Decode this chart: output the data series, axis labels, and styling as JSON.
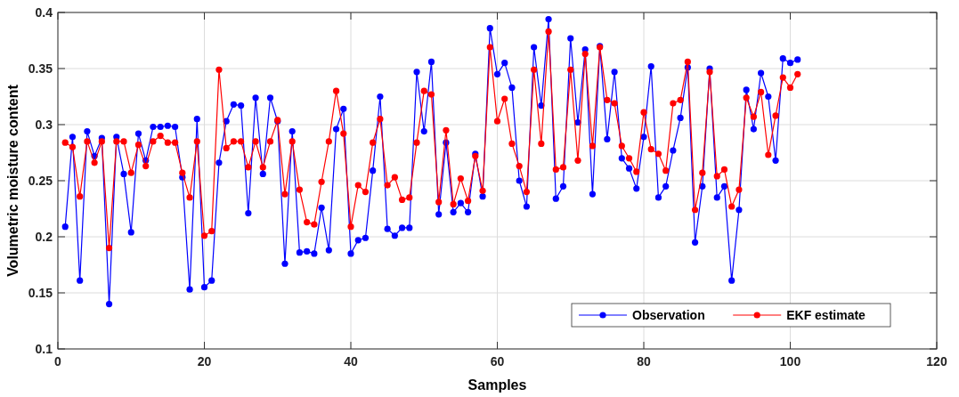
{
  "chart_data": {
    "type": "line",
    "xlabel": "Samples",
    "ylabel": "Volumetric moisture content",
    "x": [
      1,
      2,
      3,
      4,
      5,
      6,
      7,
      8,
      9,
      10,
      11,
      12,
      13,
      14,
      15,
      16,
      17,
      18,
      19,
      20,
      21,
      22,
      23,
      24,
      25,
      26,
      27,
      28,
      29,
      30,
      31,
      32,
      33,
      34,
      35,
      36,
      37,
      38,
      39,
      40,
      41,
      42,
      43,
      44,
      45,
      46,
      47,
      48,
      49,
      50,
      51,
      52,
      53,
      54,
      55,
      56,
      57,
      58,
      59,
      60,
      61,
      62,
      63,
      64,
      65,
      66,
      67,
      68,
      69,
      70,
      71,
      72,
      73,
      74,
      75,
      76,
      77,
      78,
      79,
      80,
      81,
      82,
      83,
      84,
      85,
      86,
      87,
      88,
      89,
      90,
      91,
      92,
      93,
      94,
      95,
      96,
      97,
      98,
      99,
      100,
      101
    ],
    "series": [
      {
        "name": "Observation",
        "color": "#0000ff",
        "values": [
          0.209,
          0.289,
          0.161,
          0.294,
          0.272,
          0.288,
          0.14,
          0.289,
          0.256,
          0.204,
          0.292,
          0.268,
          0.298,
          0.298,
          0.299,
          0.298,
          0.253,
          0.153,
          0.305,
          0.155,
          0.161,
          0.266,
          0.303,
          0.318,
          0.317,
          0.221,
          0.324,
          0.256,
          0.324,
          0.303,
          0.176,
          0.294,
          0.186,
          0.187,
          0.185,
          0.226,
          0.188,
          0.296,
          0.314,
          0.185,
          0.197,
          0.199,
          0.259,
          0.325,
          0.207,
          0.201,
          0.208,
          0.208,
          0.347,
          0.294,
          0.356,
          0.22,
          0.284,
          0.222,
          0.23,
          0.222,
          0.274,
          0.236,
          0.386,
          0.345,
          0.355,
          0.333,
          0.25,
          0.227,
          0.369,
          0.317,
          0.394,
          0.234,
          0.245,
          0.377,
          0.302,
          0.367,
          0.238,
          0.37,
          0.287,
          0.347,
          0.27,
          0.261,
          0.243,
          0.289,
          0.352,
          0.235,
          0.245,
          0.277,
          0.306,
          0.351,
          0.195,
          0.245,
          0.35,
          0.235,
          0.245,
          0.161,
          0.224,
          0.331,
          0.296,
          0.346,
          0.325,
          0.268,
          0.359,
          0.355,
          0.358
        ]
      },
      {
        "name": "EKF estimate",
        "color": "#ff0000",
        "values": [
          0.284,
          0.28,
          0.236,
          0.285,
          0.266,
          0.285,
          0.19,
          0.285,
          0.285,
          0.257,
          0.282,
          0.263,
          0.285,
          0.29,
          0.284,
          0.284,
          0.257,
          0.235,
          0.285,
          0.201,
          0.205,
          0.349,
          0.279,
          0.285,
          0.285,
          0.262,
          0.285,
          0.262,
          0.285,
          0.304,
          0.238,
          0.285,
          0.242,
          0.213,
          0.211,
          0.249,
          0.285,
          0.33,
          0.292,
          0.209,
          0.246,
          0.24,
          0.284,
          0.305,
          0.246,
          0.253,
          0.233,
          0.235,
          0.284,
          0.33,
          0.327,
          0.231,
          0.295,
          0.229,
          0.252,
          0.232,
          0.272,
          0.241,
          0.369,
          0.303,
          0.323,
          0.283,
          0.263,
          0.24,
          0.349,
          0.283,
          0.383,
          0.26,
          0.262,
          0.349,
          0.268,
          0.363,
          0.281,
          0.369,
          0.322,
          0.319,
          0.281,
          0.27,
          0.258,
          0.311,
          0.278,
          0.274,
          0.259,
          0.319,
          0.322,
          0.356,
          0.224,
          0.257,
          0.347,
          0.254,
          0.26,
          0.227,
          0.242,
          0.324,
          0.307,
          0.329,
          0.273,
          0.308,
          0.342,
          0.333,
          0.345
        ]
      }
    ],
    "xlim": [
      0,
      120
    ],
    "xticks": [
      0,
      20,
      40,
      60,
      80,
      100,
      120
    ],
    "ylim": [
      0.1,
      0.4
    ],
    "yticks": [
      0.1,
      0.15,
      0.2,
      0.25,
      0.3,
      0.35,
      0.4
    ],
    "grid": true,
    "legend": "bottom right",
    "marker": "circle",
    "line_style": "solid"
  }
}
